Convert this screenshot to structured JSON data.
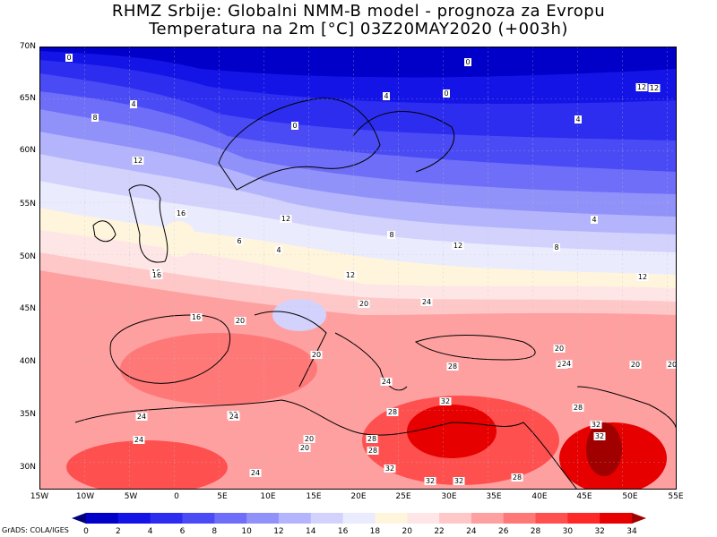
{
  "title": {
    "line1": "RHMZ Srbije: Globalni NMM-B model - prognoza za Evropu",
    "line2": "Temperatura na 2m [°C] 03Z20MAY2020 (+003h)"
  },
  "axes": {
    "lat_labels": [
      "70N",
      "65N",
      "60N",
      "55N",
      "50N",
      "45N",
      "40N",
      "35N",
      "30N"
    ],
    "lon_labels": [
      "15W",
      "10W",
      "5W",
      "0",
      "5E",
      "10E",
      "15E",
      "20E",
      "25E",
      "30E",
      "35E",
      "40E",
      "45E",
      "50E",
      "55E"
    ]
  },
  "colorbar": {
    "ticks": [
      "0",
      "2",
      "4",
      "6",
      "8",
      "10",
      "12",
      "14",
      "16",
      "18",
      "20",
      "22",
      "24",
      "26",
      "28",
      "30",
      "32",
      "34"
    ],
    "colors": [
      "#00007d",
      "#0000c8",
      "#1414e6",
      "#2d2df0",
      "#4b4bf5",
      "#6e6ef8",
      "#9191fa",
      "#b4b4fc",
      "#d2d2fd",
      "#ebebfe",
      "#fff5dc",
      "#ffe6e6",
      "#ffc8c8",
      "#ffa0a0",
      "#ff7878",
      "#ff5050",
      "#ff2828",
      "#e60000",
      "#a00000"
    ]
  },
  "contour_labels": [
    {
      "text": "0"
    },
    {
      "text": "4"
    },
    {
      "text": "8"
    },
    {
      "text": "12"
    },
    {
      "text": "16"
    },
    {
      "text": "0"
    },
    {
      "text": "4"
    },
    {
      "text": "6"
    },
    {
      "text": "12"
    },
    {
      "text": "16"
    },
    {
      "text": "16"
    },
    {
      "text": "0"
    },
    {
      "text": "4"
    },
    {
      "text": "0"
    },
    {
      "text": "4"
    },
    {
      "text": "12"
    },
    {
      "text": "12"
    },
    {
      "text": "4"
    },
    {
      "text": "12"
    },
    {
      "text": "8"
    },
    {
      "text": "4"
    },
    {
      "text": "8"
    },
    {
      "text": "16"
    },
    {
      "text": "12"
    },
    {
      "text": "20"
    },
    {
      "text": "20"
    },
    {
      "text": "20"
    },
    {
      "text": "20"
    },
    {
      "text": "20"
    },
    {
      "text": "24"
    },
    {
      "text": "24"
    },
    {
      "text": "28"
    },
    {
      "text": "24"
    },
    {
      "text": "28"
    },
    {
      "text": "24"
    },
    {
      "text": "24"
    },
    {
      "text": "28"
    },
    {
      "text": "20"
    },
    {
      "text": "20"
    },
    {
      "text": "28"
    },
    {
      "text": "28"
    },
    {
      "text": "28"
    },
    {
      "text": "32"
    },
    {
      "text": "32"
    },
    {
      "text": "32"
    },
    {
      "text": "32"
    },
    {
      "text": "32"
    },
    {
      "text": "32"
    },
    {
      "text": "28"
    },
    {
      "text": "32"
    },
    {
      "text": "24"
    },
    {
      "text": "24"
    },
    {
      "text": "20"
    },
    {
      "text": "24"
    },
    {
      "text": "12"
    }
  ],
  "credit": "GrADS: COLA/IGES"
}
